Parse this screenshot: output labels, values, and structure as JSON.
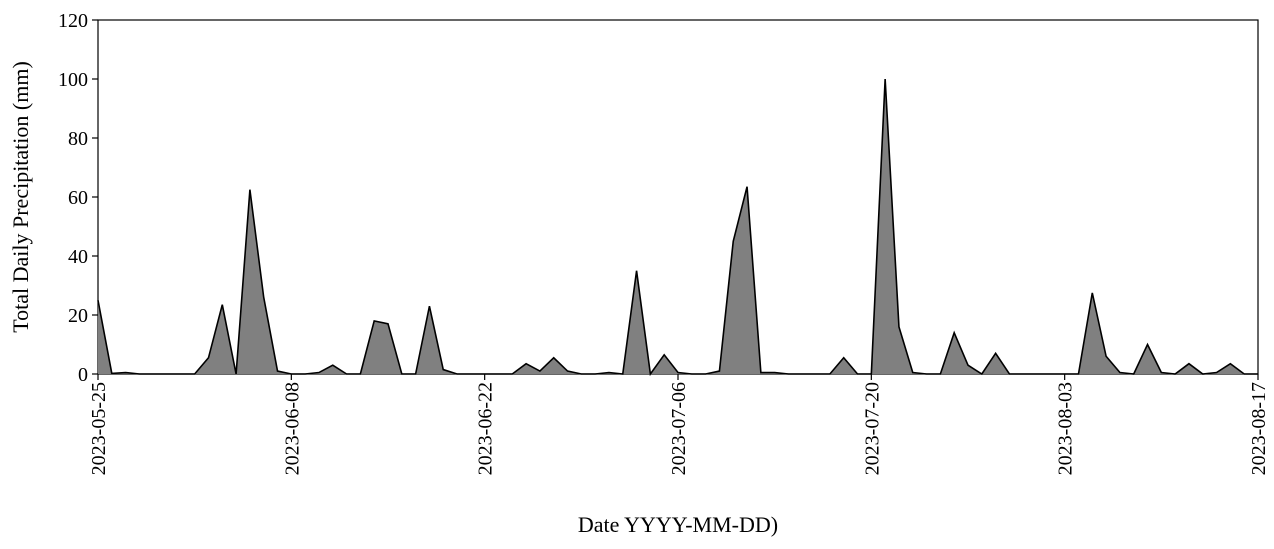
{
  "chart_data": {
    "type": "area",
    "title": "",
    "xlabel": "Date YYYY-MM-DD)",
    "ylabel": "Total Daily Precipitation (mm)",
    "x_start": "2023-05-25",
    "x_end": "2023-08-17",
    "xlim": [
      "2023-05-25",
      "2023-08-17"
    ],
    "ylim": [
      0,
      120
    ],
    "x_ticks": [
      "2023-05-25",
      "2023-06-08",
      "2023-06-22",
      "2023-07-06",
      "2023-07-20",
      "2023-08-03",
      "2023-08-17"
    ],
    "y_ticks": [
      0,
      20,
      40,
      60,
      80,
      100,
      120
    ],
    "grid": false,
    "legend": "none",
    "fill_color": "#808080",
    "line_color": "#000000",
    "x": [
      "2023-05-25",
      "2023-05-26",
      "2023-05-27",
      "2023-05-28",
      "2023-05-29",
      "2023-05-30",
      "2023-05-31",
      "2023-06-01",
      "2023-06-02",
      "2023-06-03",
      "2023-06-04",
      "2023-06-05",
      "2023-06-06",
      "2023-06-07",
      "2023-06-08",
      "2023-06-09",
      "2023-06-10",
      "2023-06-11",
      "2023-06-12",
      "2023-06-13",
      "2023-06-14",
      "2023-06-15",
      "2023-06-16",
      "2023-06-17",
      "2023-06-18",
      "2023-06-19",
      "2023-06-20",
      "2023-06-21",
      "2023-06-22",
      "2023-06-23",
      "2023-06-24",
      "2023-06-25",
      "2023-06-26",
      "2023-06-27",
      "2023-06-28",
      "2023-06-29",
      "2023-06-30",
      "2023-07-01",
      "2023-07-02",
      "2023-07-03",
      "2023-07-04",
      "2023-07-05",
      "2023-07-06",
      "2023-07-07",
      "2023-07-08",
      "2023-07-09",
      "2023-07-10",
      "2023-07-11",
      "2023-07-12",
      "2023-07-13",
      "2023-07-14",
      "2023-07-15",
      "2023-07-16",
      "2023-07-17",
      "2023-07-18",
      "2023-07-19",
      "2023-07-20",
      "2023-07-21",
      "2023-07-22",
      "2023-07-23",
      "2023-07-24",
      "2023-07-25",
      "2023-07-26",
      "2023-07-27",
      "2023-07-28",
      "2023-07-29",
      "2023-07-30",
      "2023-07-31",
      "2023-08-01",
      "2023-08-02",
      "2023-08-03",
      "2023-08-04",
      "2023-08-05",
      "2023-08-06",
      "2023-08-07",
      "2023-08-08",
      "2023-08-09",
      "2023-08-10",
      "2023-08-11",
      "2023-08-12",
      "2023-08-13",
      "2023-08-14",
      "2023-08-15",
      "2023-08-16",
      "2023-08-17"
    ],
    "values": [
      25,
      0.2,
      0.5,
      0,
      0,
      0,
      0,
      0,
      5.5,
      23.5,
      0,
      62.5,
      26,
      1,
      0,
      0,
      0.5,
      3,
      0,
      0,
      18,
      17,
      0,
      0,
      23,
      1.5,
      0,
      0,
      0,
      0,
      0,
      3.5,
      1,
      5.5,
      1,
      0,
      0,
      0.5,
      0,
      35,
      0,
      6.5,
      0.5,
      0,
      0,
      1,
      45,
      63.5,
      0.5,
      0.5,
      0,
      0,
      0,
      0,
      5.5,
      0,
      0,
      100,
      16,
      0.5,
      0,
      0,
      14,
      3,
      0,
      7,
      0,
      0,
      0,
      0,
      0,
      0,
      27.5,
      6,
      0.5,
      0,
      10,
      0.5,
      0,
      3.5,
      0,
      0.5,
      3.5,
      0,
      0
    ]
  }
}
